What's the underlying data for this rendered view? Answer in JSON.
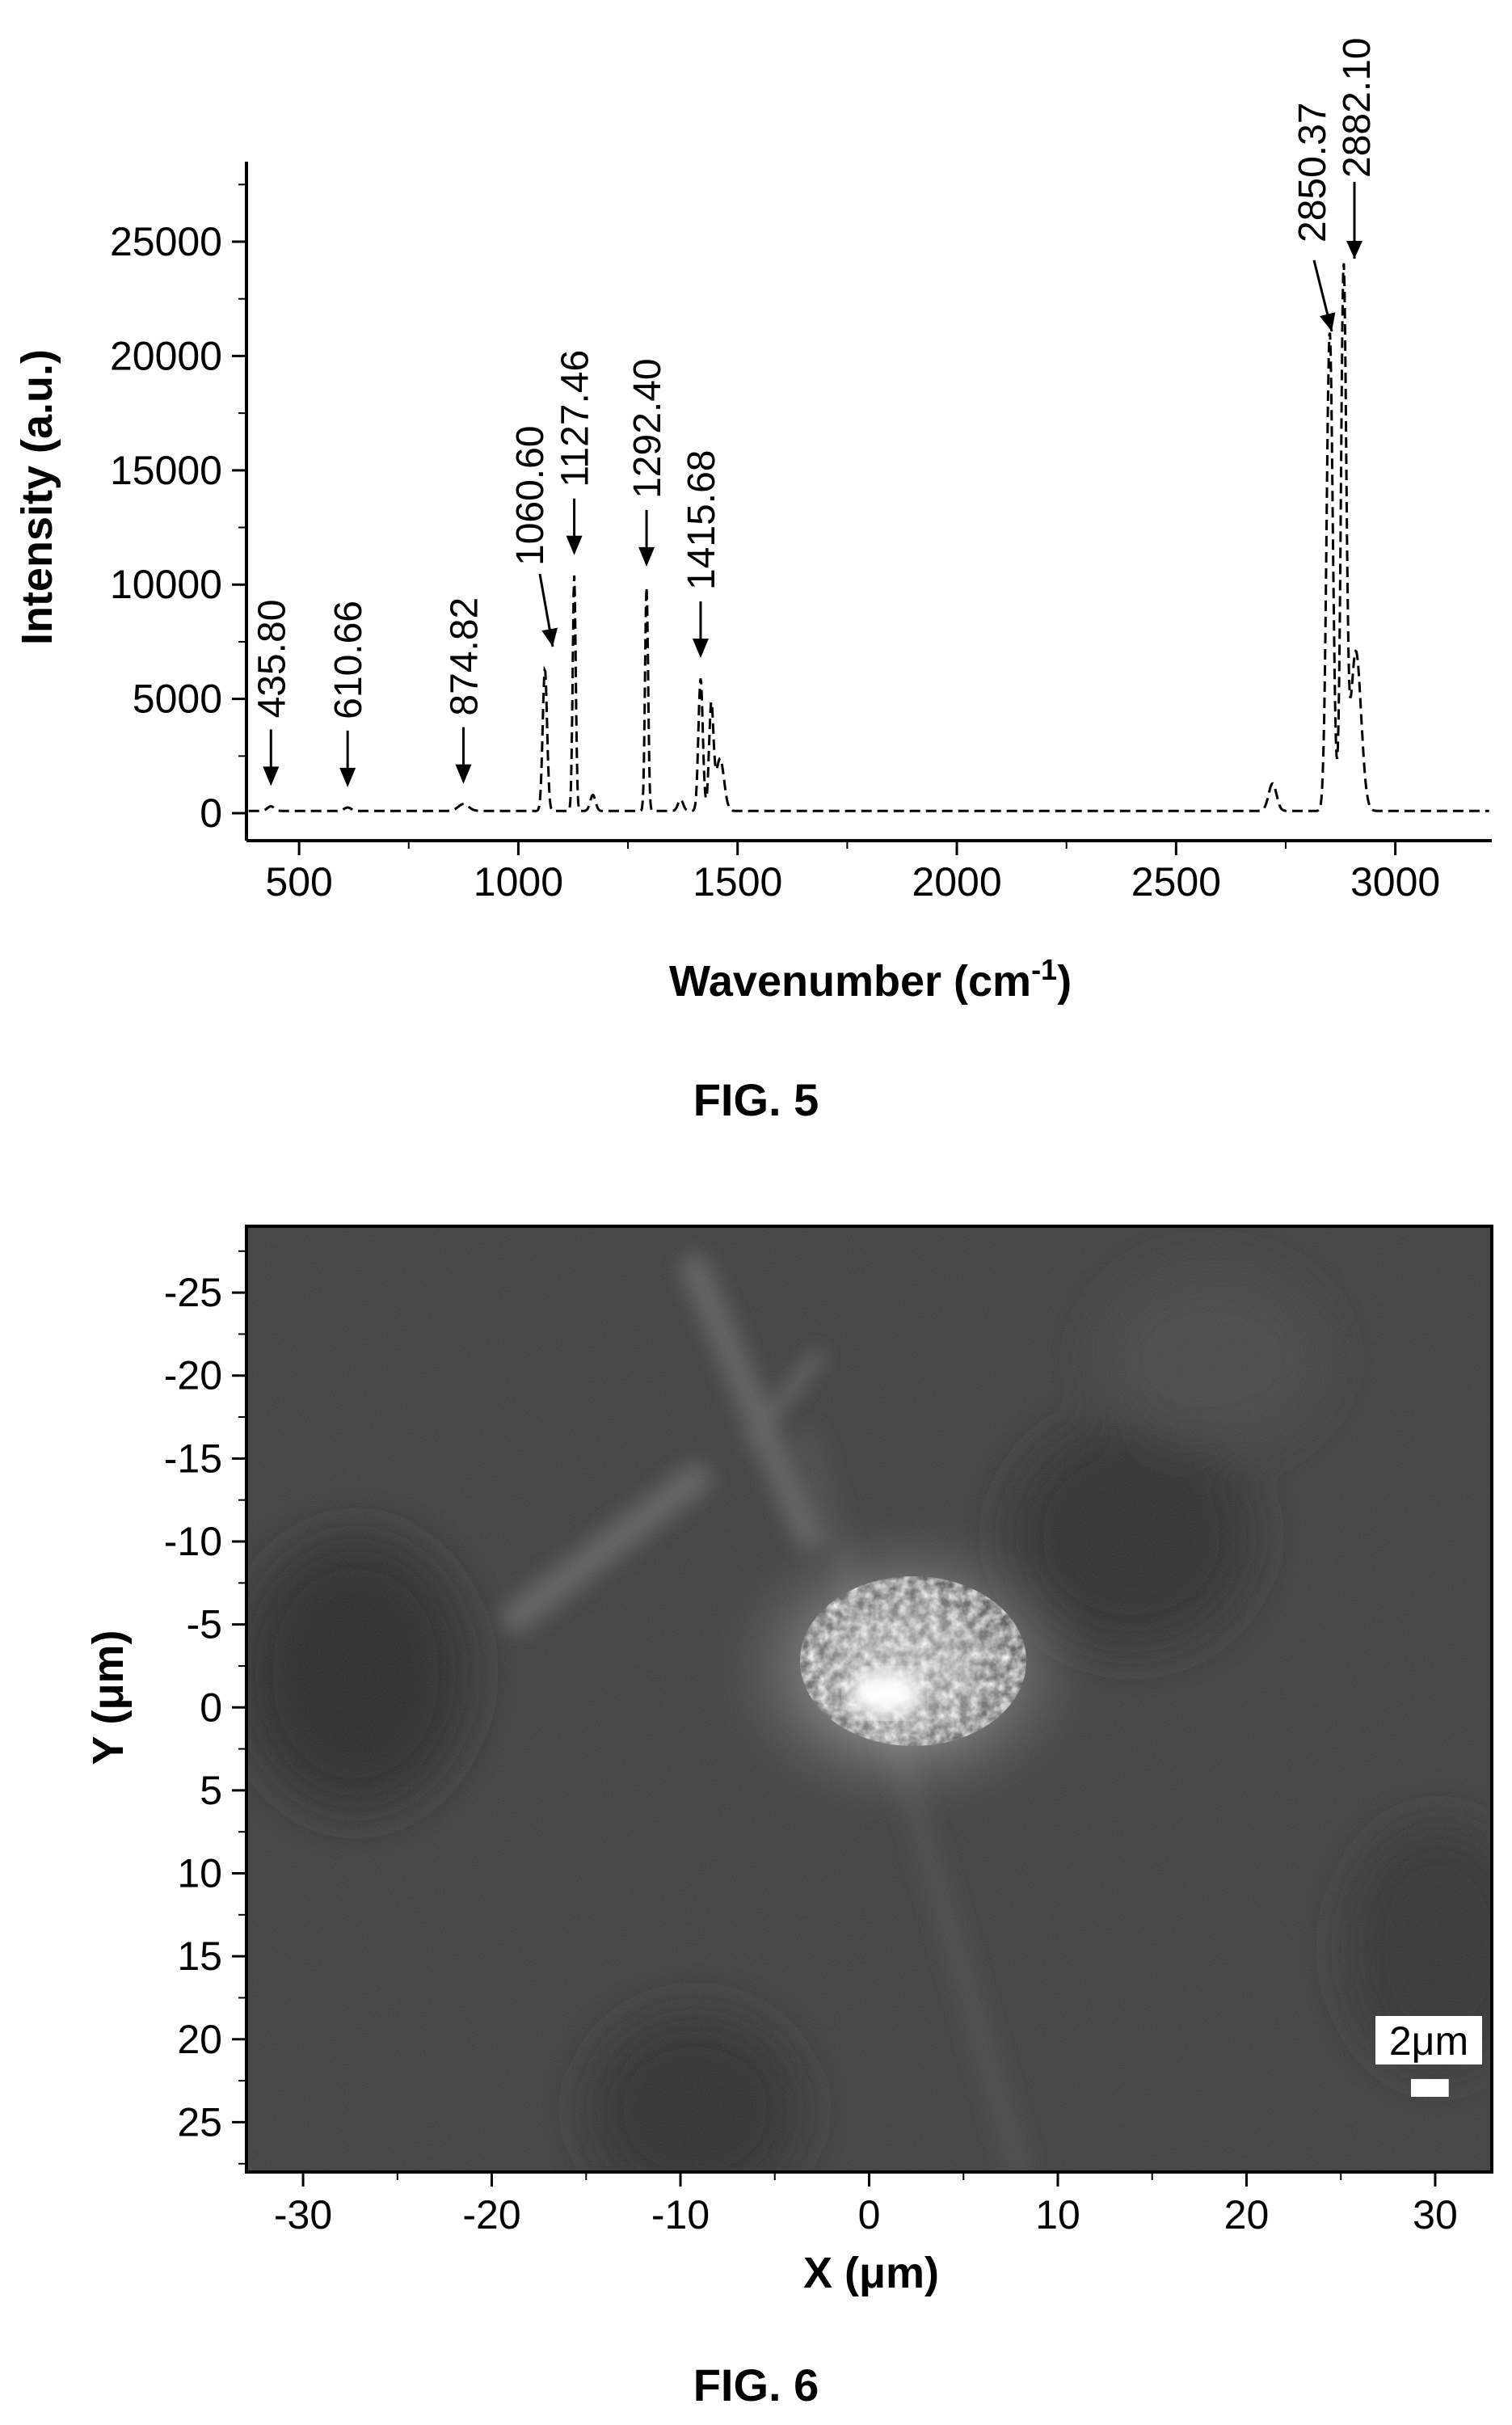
{
  "chart_data": [
    {
      "type": "line",
      "caption": "FIG. 5",
      "xlabel": "Wavenumber (cm",
      "xlabel_sup": "-1",
      "xlabel_close": ")",
      "ylabel": "Intensity (a.u.)",
      "xlim": [
        380,
        3220
      ],
      "ylim": [
        -1200,
        28500
      ],
      "xticks": [
        500,
        1000,
        1500,
        2000,
        2500,
        3000
      ],
      "yticks": [
        0,
        5000,
        10000,
        15000,
        20000,
        25000
      ],
      "line_style": "dashed",
      "grid": false,
      "legend": "none",
      "baseline": 100,
      "peaks": [
        {
          "x": 435.8,
          "y": 200,
          "w": 8
        },
        {
          "x": 610.66,
          "y": 150,
          "w": 8
        },
        {
          "x": 874.82,
          "y": 300,
          "w": 12
        },
        {
          "x": 1060.6,
          "y": 6200,
          "w": 5
        },
        {
          "x": 1127.46,
          "y": 10300,
          "w": 3.5
        },
        {
          "x": 1170,
          "y": 700,
          "w": 6
        },
        {
          "x": 1292.4,
          "y": 9800,
          "w": 3.5
        },
        {
          "x": 1370,
          "y": 500,
          "w": 6
        },
        {
          "x": 1415.68,
          "y": 5800,
          "w": 5
        },
        {
          "x": 1440,
          "y": 4600,
          "w": 5
        },
        {
          "x": 1460,
          "y": 2300,
          "w": 9
        },
        {
          "x": 2720,
          "y": 1200,
          "w": 9
        },
        {
          "x": 2850.37,
          "y": 21000,
          "w": 7
        },
        {
          "x": 2882.1,
          "y": 23500,
          "w": 6
        },
        {
          "x": 2910,
          "y": 7000,
          "w": 12
        }
      ],
      "annotations": [
        {
          "label": "435.80",
          "x": 435.8,
          "y": 200
        },
        {
          "label": "610.66",
          "x": 610.66,
          "y": 150
        },
        {
          "label": "874.82",
          "x": 874.82,
          "y": 300
        },
        {
          "label": "1060.60",
          "x": 1060.6,
          "y": 6200
        },
        {
          "label": "1127.46",
          "x": 1127.46,
          "y": 10300
        },
        {
          "label": "1292.40",
          "x": 1292.4,
          "y": 9800
        },
        {
          "label": "1415.68",
          "x": 1415.68,
          "y": 5800
        },
        {
          "label": "2850.37",
          "x": 2850.37,
          "y": 21000
        },
        {
          "label": "2882.10",
          "x": 2882.1,
          "y": 23500
        }
      ]
    },
    {
      "type": "heatmap",
      "caption": "FIG. 6",
      "xlabel": "X (μm)",
      "ylabel": "Y (μm)",
      "xlim": [
        -33,
        33
      ],
      "ylim": [
        -29,
        28
      ],
      "xticks": [
        -30,
        -20,
        -10,
        0,
        10,
        20,
        30
      ],
      "yticks": [
        -25,
        -20,
        -15,
        -10,
        -5,
        0,
        5,
        10,
        15,
        20,
        25
      ],
      "y_axis_inverted": true,
      "scalebar_label": "2μm",
      "scalebar_length_um": 2,
      "image_colors": {
        "background": "#3a3a3a",
        "highlight": "#ffffff"
      }
    }
  ]
}
